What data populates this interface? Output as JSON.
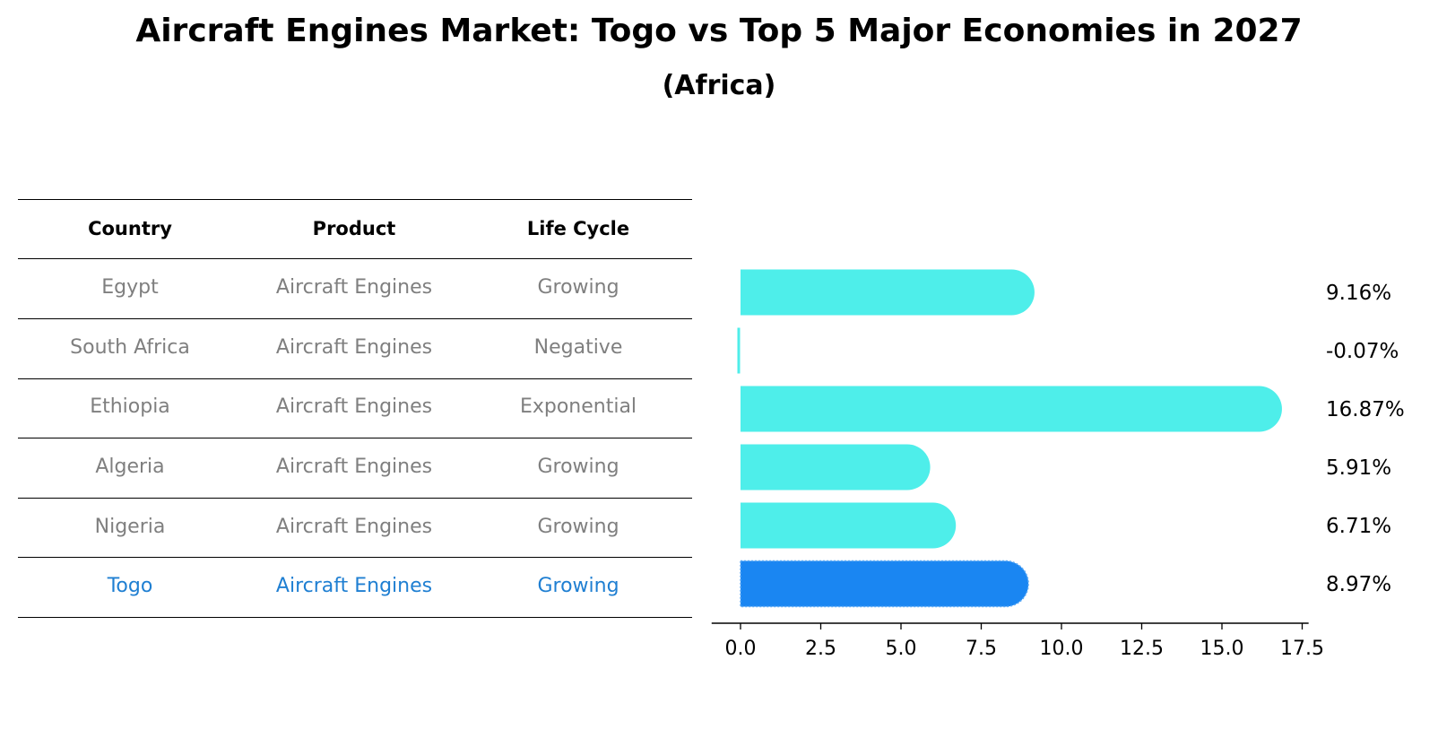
{
  "header": {
    "title": "Aircraft Engines Market: Togo vs Top 5 Major Economies in 2027",
    "subtitle": "(Africa)"
  },
  "table": {
    "columns": [
      "Country",
      "Product",
      "Life Cycle"
    ],
    "rows": [
      {
        "country": "Egypt",
        "product": "Aircraft Engines",
        "life_cycle": "Growing"
      },
      {
        "country": "South Africa",
        "product": "Aircraft Engines",
        "life_cycle": "Negative"
      },
      {
        "country": "Ethiopia",
        "product": "Aircraft Engines",
        "life_cycle": "Exponential"
      },
      {
        "country": "Algeria",
        "product": "Aircraft Engines",
        "life_cycle": "Growing"
      },
      {
        "country": "Nigeria",
        "product": "Aircraft Engines",
        "life_cycle": "Growing"
      },
      {
        "country": "Togo",
        "product": "Aircraft Engines",
        "life_cycle": "Growing"
      }
    ],
    "highlight_row": 5
  },
  "colors": {
    "bar": "#4eeeea",
    "highlight_bar": "#1a86f2",
    "highlight_text": "#1f7fd2",
    "muted_text": "#7f7f7f"
  },
  "chart_data": {
    "type": "bar",
    "orientation": "horizontal",
    "title": "Aircraft Engines Market: Togo vs Top 5 Major Economies in 2027",
    "subtitle": "(Africa)",
    "categories": [
      "Egypt",
      "South Africa",
      "Ethiopia",
      "Algeria",
      "Nigeria",
      "Togo"
    ],
    "values": [
      9.16,
      -0.07,
      16.87,
      5.91,
      6.71,
      8.97
    ],
    "value_labels": [
      "9.16%",
      "-0.07%",
      "16.87%",
      "5.91%",
      "6.71%",
      "8.97%"
    ],
    "highlight": "Togo",
    "xlim": [
      -0.9,
      17.7
    ],
    "xticks": [
      0.0,
      2.5,
      5.0,
      7.5,
      10.0,
      12.5,
      15.0,
      17.5
    ],
    "xtick_labels": [
      "0.0",
      "2.5",
      "5.0",
      "7.5",
      "10.0",
      "12.5",
      "15.0",
      "17.5"
    ],
    "xlabel": "",
    "ylabel": "",
    "grid": false
  }
}
